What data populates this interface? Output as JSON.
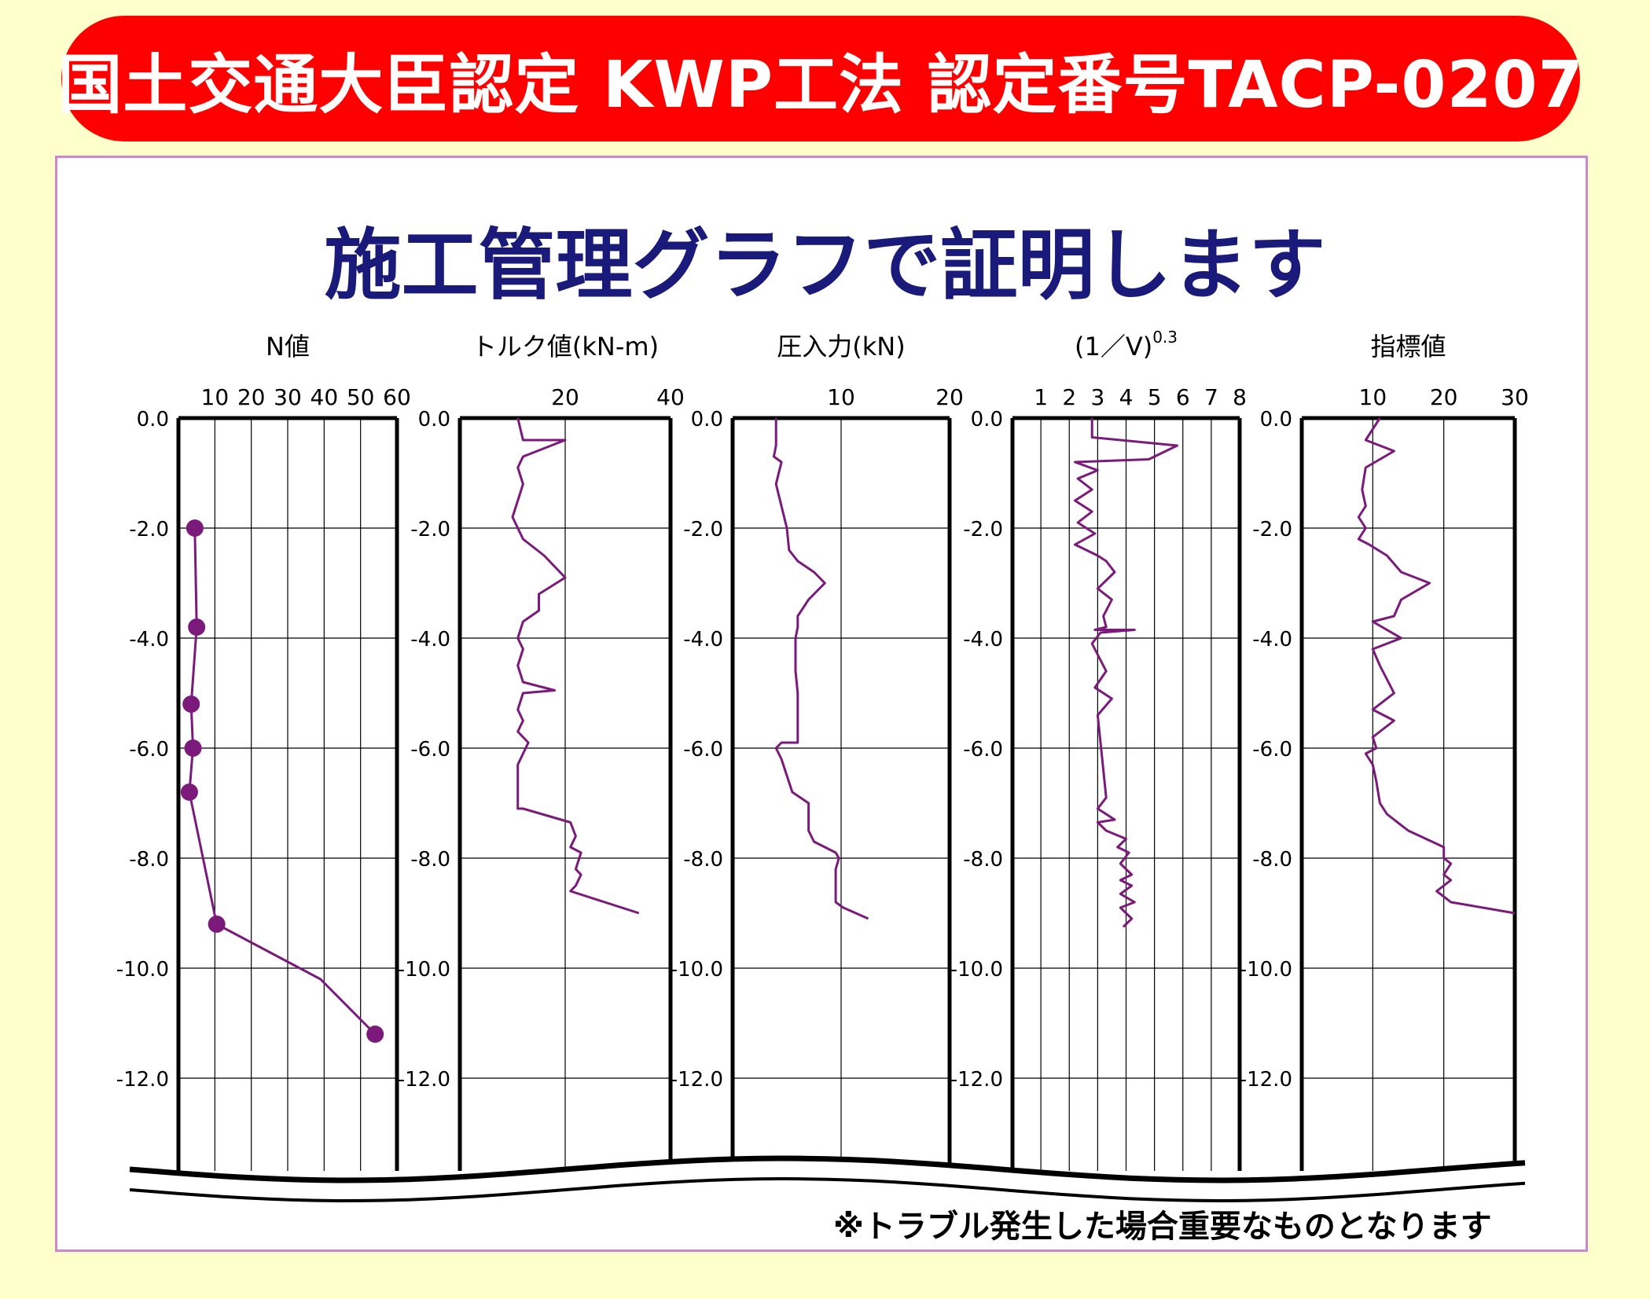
{
  "banner": {
    "title": "国土交通大臣認定 KWP工法 認定番号TACP-0207"
  },
  "subtitle": "施工管理グラフで証明します",
  "footnote": "※トラブル発生した場合重要なものとなります",
  "colors": {
    "banner": "#FF0000",
    "subtitle": "#1A1A7A",
    "series": "#7B1A7B",
    "panel_border": "#CC88CC"
  },
  "chart_data": [
    {
      "type": "line",
      "title": "N値",
      "x_ticks": [
        "10",
        "20",
        "30",
        "40",
        "50",
        "60"
      ],
      "x_tick_values": [
        10,
        20,
        30,
        40,
        50,
        60
      ],
      "xlim": [
        0,
        60
      ],
      "ylim": [
        0,
        -13.3
      ],
      "y_ticks": [
        "0.0",
        "-2.0",
        "-4.0",
        "-6.0",
        "-8.0",
        "-10.0",
        "-12.0"
      ],
      "y_tick_values": [
        0,
        -2,
        -4,
        -6,
        -8,
        -10,
        -12
      ],
      "grid": true,
      "markers": true,
      "series": [
        {
          "x": [
            4.5,
            5,
            3.5,
            4,
            3,
            10.5,
            39,
            54
          ],
          "y": [
            -2.0,
            -3.8,
            -5.2,
            -6.0,
            -6.8,
            -9.2,
            -10.2,
            -11.2
          ]
        }
      ],
      "marker_points": [
        {
          "x": 4.5,
          "y": -2.0
        },
        {
          "x": 5,
          "y": -3.8
        },
        {
          "x": 3.5,
          "y": -5.2
        },
        {
          "x": 4,
          "y": -6.0
        },
        {
          "x": 3,
          "y": -6.8
        },
        {
          "x": 10.5,
          "y": -9.2
        },
        {
          "x": 54,
          "y": -11.2
        }
      ]
    },
    {
      "type": "line",
      "title": "トルク値(kN-m)",
      "x_ticks": [
        "20",
        "40"
      ],
      "x_tick_values": [
        20,
        40
      ],
      "xlim": [
        0,
        40
      ],
      "ylim": [
        0,
        -13.3
      ],
      "y_ticks": [
        "0.0",
        "-2.0",
        "-4.0",
        "-6.0",
        "-8.0",
        "-10.0",
        "-12.0"
      ],
      "y_tick_values": [
        0,
        -2,
        -4,
        -6,
        -8,
        -10,
        -12
      ],
      "grid": true,
      "series": [
        {
          "x": [
            11,
            12,
            20,
            12,
            11,
            12,
            11,
            10,
            11,
            12,
            16,
            20,
            15,
            15,
            12,
            11,
            12,
            11,
            12,
            18,
            12,
            11,
            12,
            11,
            12,
            13,
            11,
            11,
            12,
            21,
            22,
            21,
            23,
            22,
            23,
            22,
            21,
            34
          ],
          "y": [
            0,
            -0.4,
            -0.4,
            -0.7,
            -0.9,
            -1.2,
            -1.5,
            -1.8,
            -2.0,
            -2.2,
            -2.5,
            -2.9,
            -3.2,
            -3.5,
            -3.7,
            -4.0,
            -4.2,
            -4.5,
            -4.8,
            -4.95,
            -5.0,
            -5.3,
            -5.5,
            -5.7,
            -5.8,
            -5.9,
            -6.3,
            -7.1,
            -7.1,
            -7.35,
            -7.6,
            -7.8,
            -7.9,
            -8.2,
            -8.3,
            -8.5,
            -8.6,
            -9.0
          ]
        }
      ]
    },
    {
      "type": "line",
      "title": "圧入力(kN)",
      "x_ticks": [
        "10",
        "20"
      ],
      "x_tick_values": [
        10,
        20
      ],
      "xlim": [
        0,
        20
      ],
      "ylim": [
        0,
        -13.3
      ],
      "y_ticks": [
        "0.0",
        "-2.0",
        "-4.0",
        "-6.0",
        "-8.0",
        "-10.0",
        "-12.0"
      ],
      "y_tick_values": [
        0,
        -2,
        -4,
        -6,
        -8,
        -10,
        -12
      ],
      "grid": true,
      "series": [
        {
          "x": [
            4,
            4,
            3.8,
            4.5,
            4,
            4.5,
            5,
            5.2,
            6,
            7.5,
            8.5,
            7,
            6,
            6,
            5.8,
            5.8,
            6,
            6,
            4.5,
            4,
            4.5,
            5.5,
            7,
            7,
            7.5,
            9.5,
            9.8,
            9.5,
            9.5,
            10.2,
            12.5
          ],
          "y": [
            0,
            -0.5,
            -0.7,
            -0.8,
            -1.2,
            -1.6,
            -2.0,
            -2.4,
            -2.6,
            -2.8,
            -3.0,
            -3.3,
            -3.6,
            -3.8,
            -4.0,
            -4.6,
            -5.0,
            -5.9,
            -5.9,
            -6.0,
            -6.2,
            -6.8,
            -7.0,
            -7.5,
            -7.7,
            -7.9,
            -8.0,
            -8.2,
            -8.8,
            -8.9,
            -9.1
          ]
        }
      ]
    },
    {
      "type": "line",
      "title": "(1／V)",
      "title_superscript": "0.3",
      "x_ticks": [
        "1",
        "2",
        "3",
        "4",
        "5",
        "6",
        "7",
        "8"
      ],
      "x_tick_values": [
        1,
        2,
        3,
        4,
        5,
        6,
        7,
        8
      ],
      "xlim": [
        0,
        8
      ],
      "ylim": [
        0,
        -13.3
      ],
      "y_ticks": [
        "0.0",
        "-2.0",
        "-4.0",
        "-6.0",
        "-8.0",
        "-10.0",
        "-12.0"
      ],
      "y_tick_values": [
        0,
        -2,
        -4,
        -6,
        -8,
        -10,
        -12
      ],
      "grid": true,
      "series": [
        {
          "x": [
            2.8,
            2.8,
            5.8,
            4.8,
            2.2,
            3,
            2.3,
            2.8,
            2.2,
            2.8,
            2.3,
            2.9,
            2.2,
            3,
            3.3,
            3.6,
            3.0,
            3.5,
            3.2,
            3.3,
            2.9,
            4.3,
            3.1,
            2.8,
            3.0,
            3.3,
            2.9,
            3.5,
            3.0,
            3.3,
            3.0,
            3.6,
            3.0,
            3.3,
            4.0,
            3.7,
            4.1,
            3.8,
            4.2,
            3.8,
            4.2,
            3.8,
            4.3,
            3.8,
            4.2,
            3.9
          ],
          "y": [
            0,
            -0.35,
            -0.5,
            -0.75,
            -0.8,
            -0.95,
            -1.1,
            -1.3,
            -1.5,
            -1.7,
            -1.9,
            -2.1,
            -2.3,
            -2.5,
            -2.6,
            -2.8,
            -3.1,
            -3.3,
            -3.6,
            -3.8,
            -3.85,
            -3.85,
            -3.9,
            -4.1,
            -4.3,
            -4.6,
            -4.9,
            -5.1,
            -5.4,
            -6.9,
            -7.1,
            -7.3,
            -7.35,
            -7.5,
            -7.65,
            -7.8,
            -7.9,
            -8.1,
            -8.3,
            -8.4,
            -8.5,
            -8.65,
            -8.8,
            -8.9,
            -9.1,
            -9.25
          ]
        }
      ]
    },
    {
      "type": "line",
      "title": "指標値",
      "x_ticks": [
        "10",
        "20",
        "30"
      ],
      "x_tick_values": [
        10,
        20,
        30
      ],
      "xlim": [
        0,
        30
      ],
      "ylim": [
        0,
        -13.3
      ],
      "y_ticks": [
        "0.0",
        "-2.0",
        "-4.0",
        "-6.0",
        "-8.0",
        "-10.0",
        "-12.0"
      ],
      "y_tick_values": [
        0,
        -2,
        -4,
        -6,
        -8,
        -10,
        -12
      ],
      "grid": true,
      "series": [
        {
          "x": [
            11,
            9,
            13,
            9,
            8.5,
            9,
            8,
            9,
            8,
            9.5,
            12,
            14,
            18,
            14,
            13,
            10,
            14,
            10,
            11,
            13,
            10,
            13,
            10,
            10.5,
            9,
            10,
            10.5,
            11,
            12,
            13,
            15,
            20,
            20,
            21,
            20,
            21,
            19,
            20,
            21,
            30
          ],
          "y": [
            0,
            -0.4,
            -0.6,
            -0.9,
            -1.3,
            -1.6,
            -1.8,
            -2.0,
            -2.2,
            -2.3,
            -2.5,
            -2.8,
            -3.0,
            -3.3,
            -3.6,
            -3.7,
            -4.0,
            -4.2,
            -4.5,
            -5.0,
            -5.3,
            -5.5,
            -5.8,
            -6.0,
            -6.1,
            -6.3,
            -6.6,
            -7.0,
            -7.2,
            -7.3,
            -7.5,
            -7.8,
            -8.0,
            -8.1,
            -8.3,
            -8.4,
            -8.6,
            -8.7,
            -8.8,
            -9.0
          ]
        }
      ]
    }
  ]
}
